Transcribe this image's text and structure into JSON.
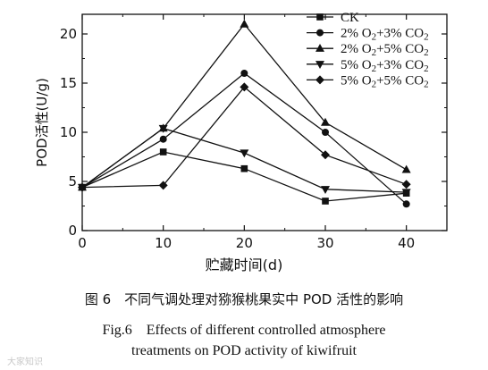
{
  "chart_data": {
    "type": "line",
    "xlabel": "贮藏时间(d)",
    "ylabel": "POD活性(U/g)",
    "x": [
      0,
      10,
      20,
      30,
      40
    ],
    "xticks": [
      "0",
      "10",
      "20",
      "30",
      "40"
    ],
    "yticks": [
      "0",
      "5",
      "10",
      "15",
      "20"
    ],
    "xlim": [
      0,
      45
    ],
    "ylim": [
      0,
      22
    ],
    "grid": false,
    "legend_position": "top-right",
    "series": [
      {
        "name": "CK",
        "marker": "square",
        "values": [
          4.4,
          8.0,
          6.3,
          3.0,
          3.8
        ]
      },
      {
        "name": "2% O2+3% CO2",
        "marker": "circle",
        "values": [
          4.4,
          9.3,
          16.0,
          10.0,
          2.7
        ]
      },
      {
        "name": "2% O2+5% CO2",
        "marker": "triangle-up",
        "values": [
          4.4,
          10.4,
          21.0,
          11.0,
          6.2
        ]
      },
      {
        "name": "5% O2+3% CO2",
        "marker": "triangle-down",
        "values": [
          4.4,
          10.4,
          7.9,
          4.2,
          3.9
        ]
      },
      {
        "name": "5% O2+5% CO2",
        "marker": "diamond",
        "values": [
          4.4,
          4.6,
          14.6,
          7.7,
          4.7
        ]
      }
    ]
  },
  "legend_items": [
    {
      "base": "CK",
      "sub1": "",
      "mid": "",
      "sub2": ""
    },
    {
      "base": "2% O",
      "sub1": "2",
      "mid": "+3% CO",
      "sub2": "2"
    },
    {
      "base": "2% O",
      "sub1": "2",
      "mid": "+5% CO",
      "sub2": "2"
    },
    {
      "base": "5% O",
      "sub1": "2",
      "mid": "+3% CO",
      "sub2": "2"
    },
    {
      "base": "5% O",
      "sub1": "2",
      "mid": "+5% CO",
      "sub2": "2"
    }
  ],
  "caption": {
    "zh": "图 6　不同气调处理对猕猴桃果实中 POD 活性的影响",
    "en_line1": "Fig.6　Effects of different controlled atmosphere",
    "en_line2": "treatments on POD activity of kiwifruit"
  },
  "watermark": "大家知识"
}
